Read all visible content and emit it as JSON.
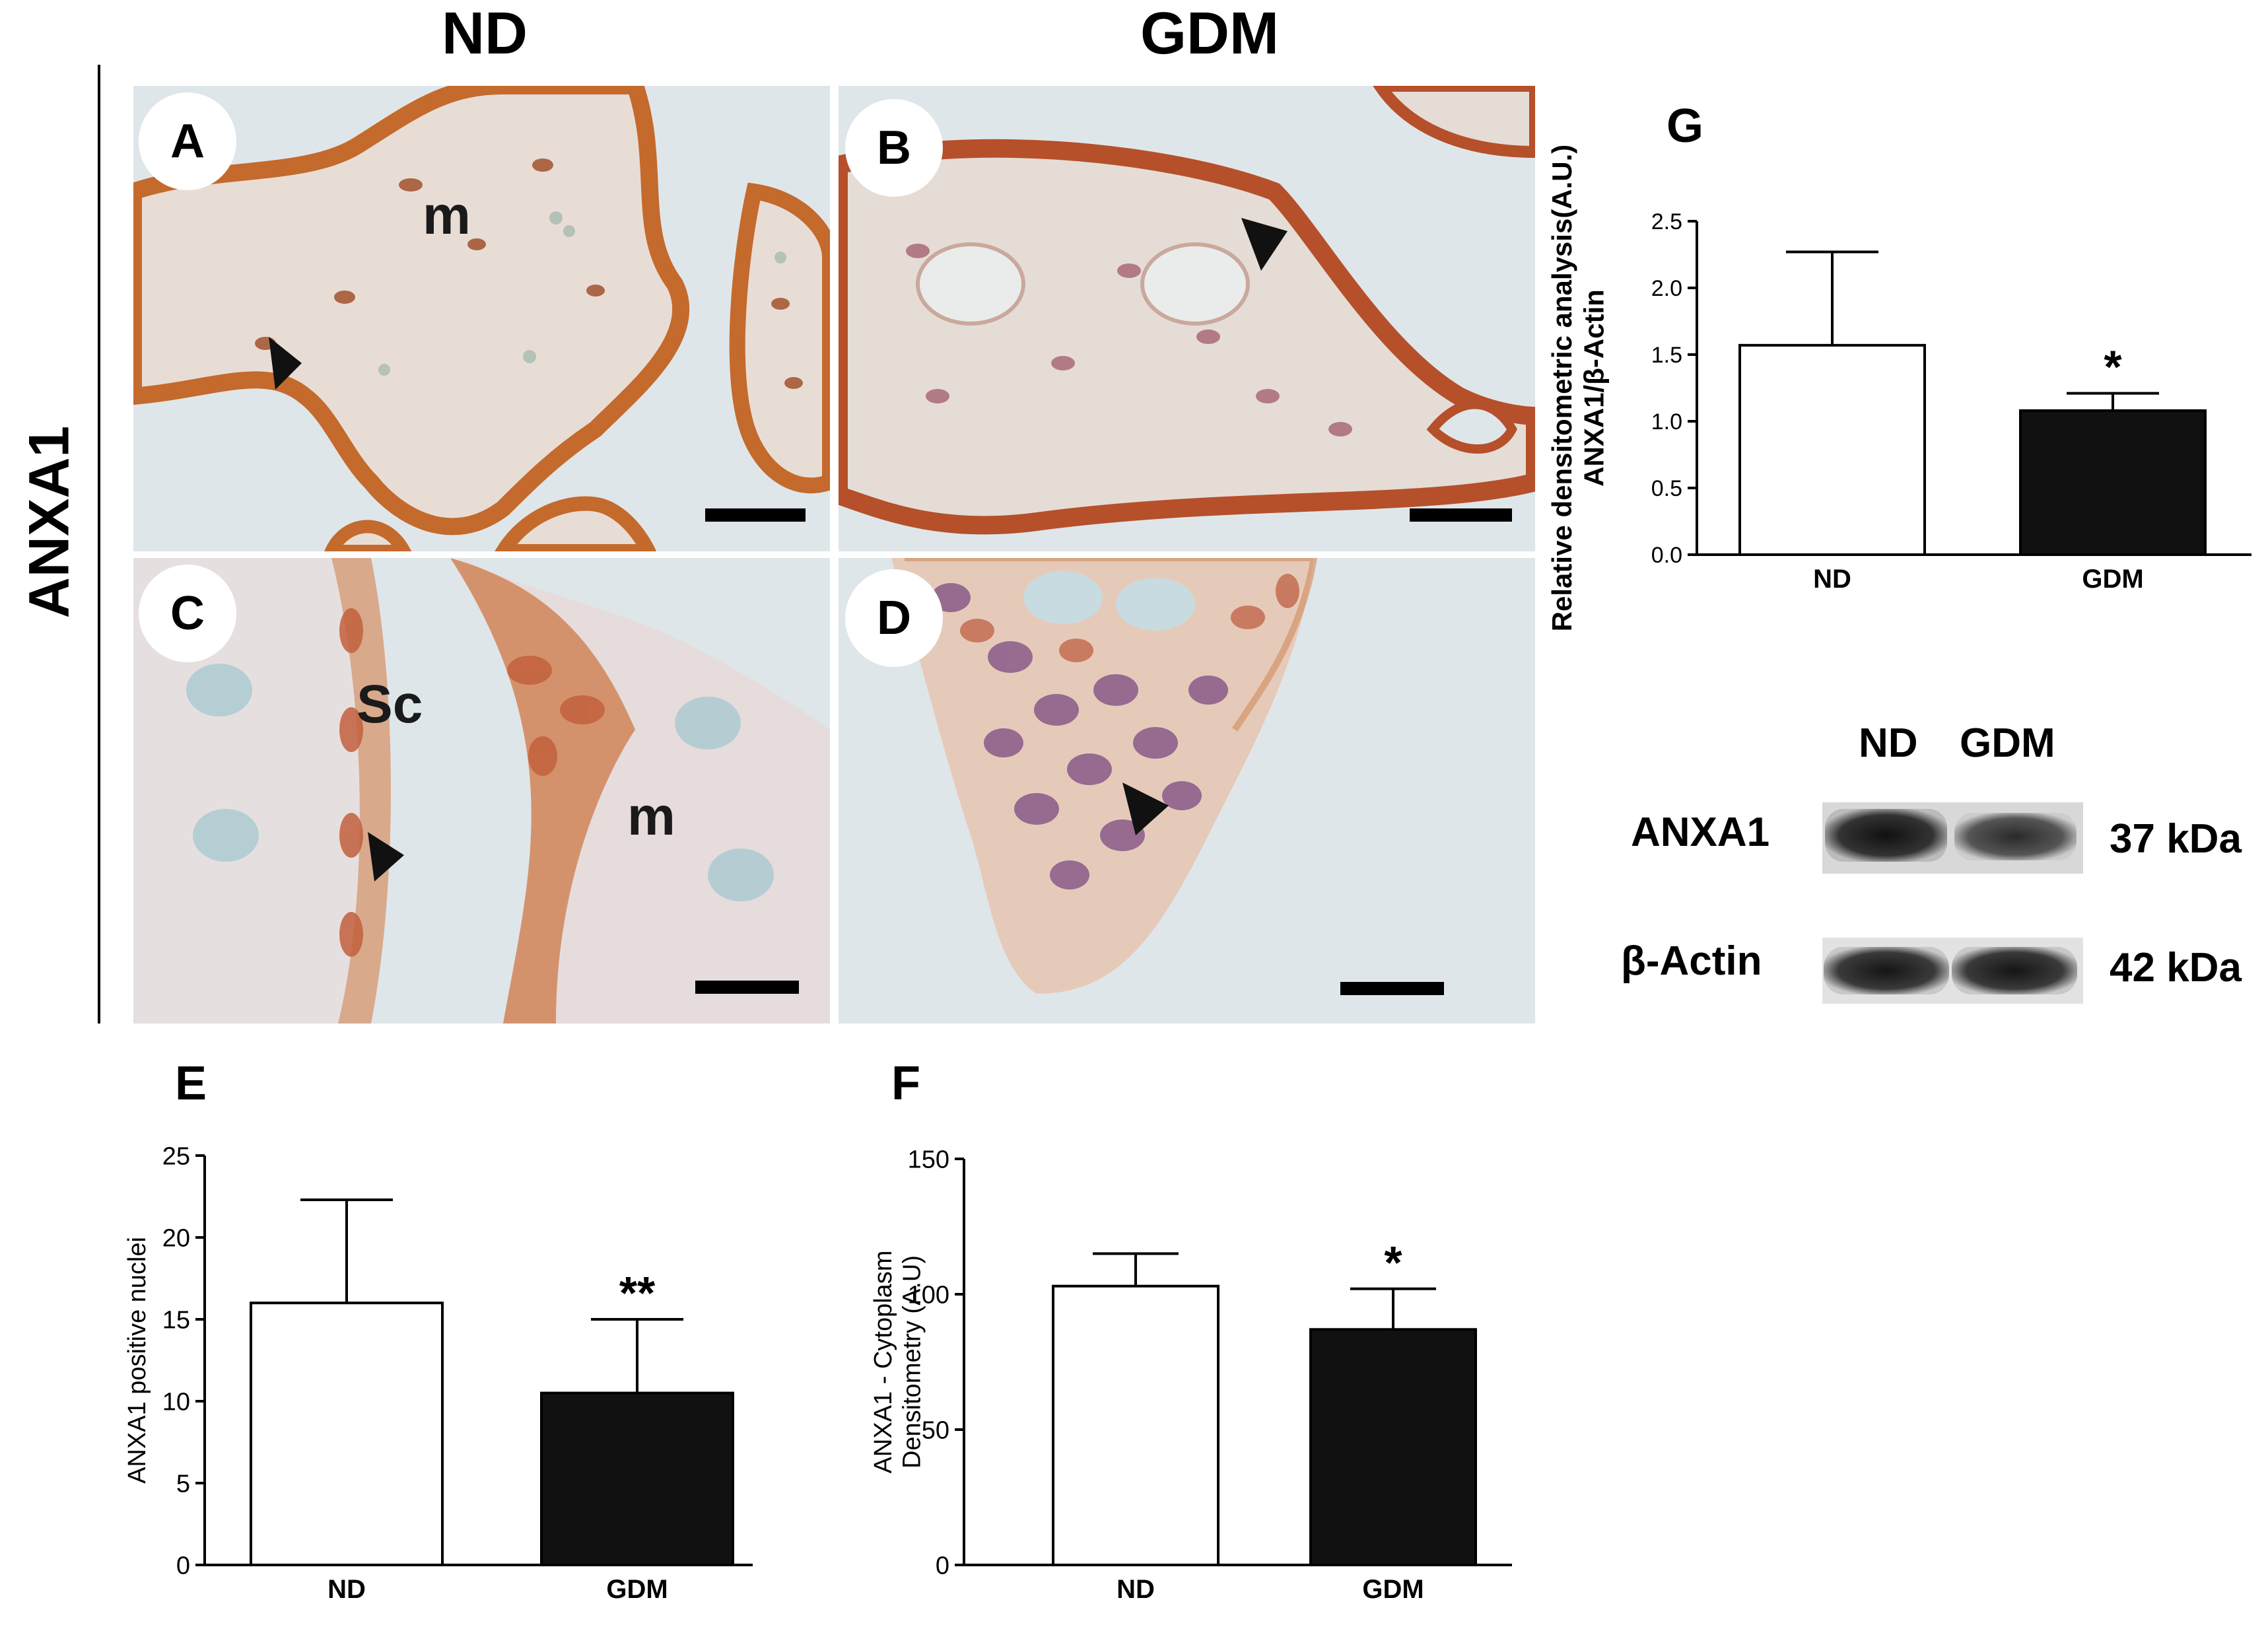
{
  "column_headers": {
    "nd": "ND",
    "gdm": "GDM"
  },
  "row_label": "ANXA1",
  "micrographs": [
    {
      "id": "A",
      "label": "A",
      "annotations": [
        "m"
      ]
    },
    {
      "id": "B",
      "label": "B",
      "annotations": []
    },
    {
      "id": "C",
      "label": "C",
      "annotations": [
        "Sc",
        "m"
      ]
    },
    {
      "id": "D",
      "label": "D",
      "annotations": []
    }
  ],
  "panel_labels": {
    "E": "E",
    "F": "F",
    "G": "G"
  },
  "colors": {
    "nd_bar": "#ffffff",
    "gdm_bar": "#111111",
    "stain_brown": "#c46a2c",
    "stain_purple": "#8a5a8a",
    "background": "#dfe6ea"
  },
  "chart_data": [
    {
      "panel": "E",
      "type": "bar",
      "categories": [
        "ND",
        "GDM"
      ],
      "values": [
        16,
        10.5
      ],
      "error": [
        6.3,
        4.5
      ],
      "significance": [
        "",
        "**"
      ],
      "ylabel": "ANXA1 positive nuclei",
      "xlabel": "",
      "ylim": [
        0,
        25
      ],
      "yticks": [
        "0",
        "5",
        "10",
        "15",
        "20",
        "25"
      ],
      "ytick_values": [
        0,
        5,
        10,
        15,
        20,
        25
      ]
    },
    {
      "panel": "F",
      "type": "bar",
      "categories": [
        "ND",
        "GDM"
      ],
      "values": [
        103,
        87
      ],
      "error": [
        12,
        15
      ],
      "significance": [
        "",
        "*"
      ],
      "ylabel": [
        "ANXA1 - Cytoplasm",
        "Densitometry (A.U)"
      ],
      "xlabel": "",
      "ylim": [
        0,
        150
      ],
      "yticks": [
        "0",
        "50",
        "100",
        "150"
      ],
      "ytick_values": [
        0,
        50,
        100,
        150
      ]
    },
    {
      "panel": "G",
      "type": "bar",
      "categories": [
        "ND",
        "GDM"
      ],
      "values": [
        1.57,
        1.08
      ],
      "error": [
        0.7,
        0.13
      ],
      "significance": [
        "",
        "*"
      ],
      "ylabel": [
        "Relative densitometric analysis(A.U.)",
        "ANXA1/β-Actin"
      ],
      "xlabel": "",
      "ylim": [
        0,
        2.5
      ],
      "yticks": [
        "0.0",
        "0.5",
        "1.0",
        "1.5",
        "2.0",
        "2.5"
      ],
      "ytick_values": [
        0,
        0.5,
        1.0,
        1.5,
        2.0,
        2.5
      ]
    }
  ],
  "western_blot": {
    "lanes": [
      "ND",
      "GDM"
    ],
    "rows": [
      {
        "protein": "ANXA1",
        "size": "37 kDa",
        "intensity": [
          0.9,
          0.75
        ]
      },
      {
        "protein": "β-Actin",
        "size": "42 kDa",
        "intensity": [
          0.85,
          0.85
        ]
      }
    ]
  }
}
